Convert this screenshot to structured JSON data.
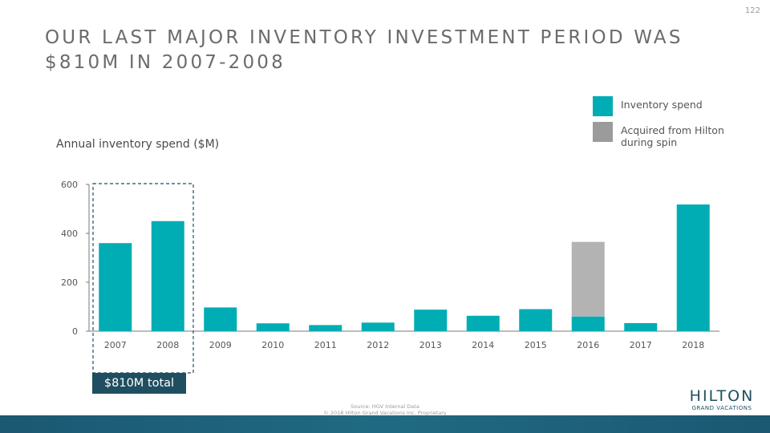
{
  "page_number": "122",
  "title": "OUR LAST MAJOR INVENTORY INVESTMENT PERIOD WAS $810M IN 2007-2008",
  "chart_label": "Annual inventory spend ($M)",
  "legend": [
    {
      "label": "Inventory spend",
      "color": "#00adb5"
    },
    {
      "label": "Acquired from Hilton during spin",
      "color": "#9b9b9b"
    }
  ],
  "total_badge": "$810M total",
  "source_line1": "Source: HGV Internal Data",
  "source_line2": "© 2018 Hilton Grand Vacations Inc. Proprietary",
  "logo": {
    "main": "HILTON",
    "sub": "GRAND VACATIONS"
  },
  "chart_data": {
    "type": "bar",
    "stacked": true,
    "categories": [
      "2007",
      "2008",
      "2009",
      "2010",
      "2011",
      "2012",
      "2013",
      "2014",
      "2015",
      "2016",
      "2017",
      "2018"
    ],
    "series": [
      {
        "name": "Inventory spend",
        "color": "#00adb5",
        "values": [
          360,
          450,
          97,
          32,
          25,
          35,
          88,
          63,
          90,
          60,
          33,
          518
        ]
      },
      {
        "name": "Acquired from Hilton during spin",
        "color": "#b3b3b3",
        "values": [
          0,
          0,
          0,
          0,
          0,
          0,
          0,
          0,
          0,
          305,
          0,
          0
        ]
      }
    ],
    "yticks": [
      0,
      200,
      400,
      600
    ],
    "ylim": [
      0,
      600
    ],
    "highlight": {
      "categories": [
        "2007",
        "2008"
      ],
      "style": "dashed-box"
    },
    "grid": false
  }
}
